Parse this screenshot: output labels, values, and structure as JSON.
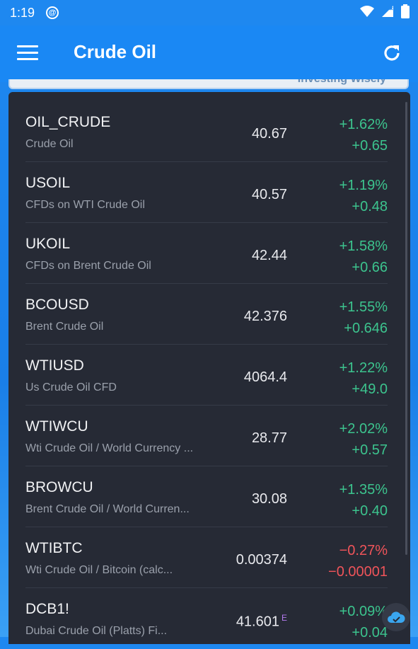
{
  "status": {
    "time": "1:19"
  },
  "appbar": {
    "title": "Crude Oil"
  },
  "banner": {
    "text": "Investing Wisely"
  },
  "rows": [
    {
      "symbol": "OIL_CRUDE",
      "desc": "Crude Oil",
      "price": "40.67",
      "pct": "+1.62%",
      "chg": "+0.65",
      "dir": "up"
    },
    {
      "symbol": "USOIL",
      "desc": "CFDs on WTI Crude Oil",
      "price": "40.57",
      "pct": "+1.19%",
      "chg": "+0.48",
      "dir": "up"
    },
    {
      "symbol": "UKOIL",
      "desc": "CFDs on Brent Crude Oil",
      "price": "42.44",
      "pct": "+1.58%",
      "chg": "+0.66",
      "dir": "up"
    },
    {
      "symbol": "BCOUSD",
      "desc": "Brent Crude Oil",
      "price": "42.376",
      "pct": "+1.55%",
      "chg": "+0.646",
      "dir": "up"
    },
    {
      "symbol": "WTIUSD",
      "desc": "Us Crude Oil CFD",
      "price": "4064.4",
      "pct": "+1.22%",
      "chg": "+49.0",
      "dir": "up"
    },
    {
      "symbol": "WTIWCU",
      "desc": "Wti Crude Oil / World Currency ...",
      "price": "28.77",
      "pct": "+2.02%",
      "chg": "+0.57",
      "dir": "up"
    },
    {
      "symbol": "BROWCU",
      "desc": "Brent Crude Oil / World Curren...",
      "price": "30.08",
      "pct": "+1.35%",
      "chg": "+0.40",
      "dir": "up"
    },
    {
      "symbol": "WTIBTC",
      "desc": "Wti Crude Oil / Bitcoin (calc...",
      "price": "0.00374",
      "pct": "−0.27%",
      "chg": "−0.00001",
      "dir": "down"
    },
    {
      "symbol": "DCB1!",
      "desc": "Dubai Crude Oil (Platts) Fi...",
      "price": "41.601",
      "price_flag": "E",
      "pct": "+0.09%",
      "chg": "+0.04",
      "dir": "up"
    }
  ],
  "colors": {
    "up": "#3cc48e",
    "down": "#f0545a",
    "appbar": "#1a88f4",
    "card": "#262a35"
  }
}
